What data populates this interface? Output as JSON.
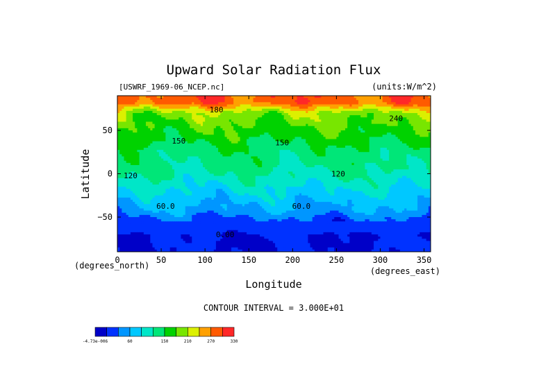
{
  "chart_data": {
    "type": "heatmap",
    "title": "Upward Solar Radiation Flux",
    "subtitle_left": "[USWRF_1969-06_NCEP.nc]",
    "subtitle_right": "(units:W/m^2)",
    "xlabel": "Longitude",
    "ylabel": "Latitude",
    "x_unit_label": "(degrees_east)",
    "y_unit_label": "(degrees_north)",
    "xlim": [
      0,
      357.5
    ],
    "ylim": [
      -90,
      90
    ],
    "x_ticks": [
      0,
      50,
      100,
      150,
      200,
      250,
      300,
      350
    ],
    "y_ticks": [
      -50,
      0,
      50
    ],
    "contour_interval_label": "CONTOUR INTERVAL = 3.000E+01",
    "contour_labels": [
      {
        "text": "180",
        "lon": 113,
        "lat": 74
      },
      {
        "text": "150",
        "lon": 188,
        "lat": 36
      },
      {
        "text": "150",
        "lon": 70,
        "lat": 38
      },
      {
        "text": "120",
        "lon": 15,
        "lat": -2
      },
      {
        "text": "120",
        "lon": 252,
        "lat": 0
      },
      {
        "text": "60.0",
        "lon": 55,
        "lat": -37
      },
      {
        "text": "60.0",
        "lon": 210,
        "lat": -37
      },
      {
        "text": "0.00",
        "lon": 123,
        "lat": -70
      },
      {
        "text": "240",
        "lon": 318,
        "lat": 64
      }
    ],
    "zonal_profile": [
      {
        "lat": 90,
        "value": 285
      },
      {
        "lat": 82,
        "value": 285
      },
      {
        "lat": 76,
        "value": 240
      },
      {
        "lat": 70,
        "value": 200
      },
      {
        "lat": 62,
        "value": 190
      },
      {
        "lat": 52,
        "value": 175
      },
      {
        "lat": 40,
        "value": 160
      },
      {
        "lat": 28,
        "value": 140
      },
      {
        "lat": 16,
        "value": 130
      },
      {
        "lat": 5,
        "value": 125
      },
      {
        "lat": -5,
        "value": 110
      },
      {
        "lat": -14,
        "value": 95
      },
      {
        "lat": -24,
        "value": 80
      },
      {
        "lat": -34,
        "value": 65
      },
      {
        "lat": -44,
        "value": 50
      },
      {
        "lat": -52,
        "value": 25
      },
      {
        "lat": -60,
        "value": 10
      },
      {
        "lat": -70,
        "value": 0
      },
      {
        "lat": -90,
        "value": 0
      }
    ],
    "colorbar": {
      "tick_labels": [
        "-4.73e-006",
        "60",
        "150",
        "210",
        "270",
        "330"
      ],
      "bins": [
        {
          "from": -30,
          "to": 0,
          "color": "#0000c8"
        },
        {
          "from": 0,
          "to": 30,
          "color": "#0032ff"
        },
        {
          "from": 30,
          "to": 60,
          "color": "#0096ff"
        },
        {
          "from": 60,
          "to": 90,
          "color": "#00c8ff"
        },
        {
          "from": 90,
          "to": 120,
          "color": "#00e6c8"
        },
        {
          "from": 120,
          "to": 150,
          "color": "#00e678"
        },
        {
          "from": 150,
          "to": 180,
          "color": "#00d200"
        },
        {
          "from": 180,
          "to": 210,
          "color": "#78e600"
        },
        {
          "from": 210,
          "to": 240,
          "color": "#dcf000"
        },
        {
          "from": 240,
          "to": 270,
          "color": "#ffa000"
        },
        {
          "from": 270,
          "to": 300,
          "color": "#ff5a00"
        },
        {
          "from": 300,
          "to": 330,
          "color": "#ff2828"
        }
      ]
    },
    "colors": {
      "below_min": "#6e00aa",
      "contour_line": "#000000"
    }
  }
}
